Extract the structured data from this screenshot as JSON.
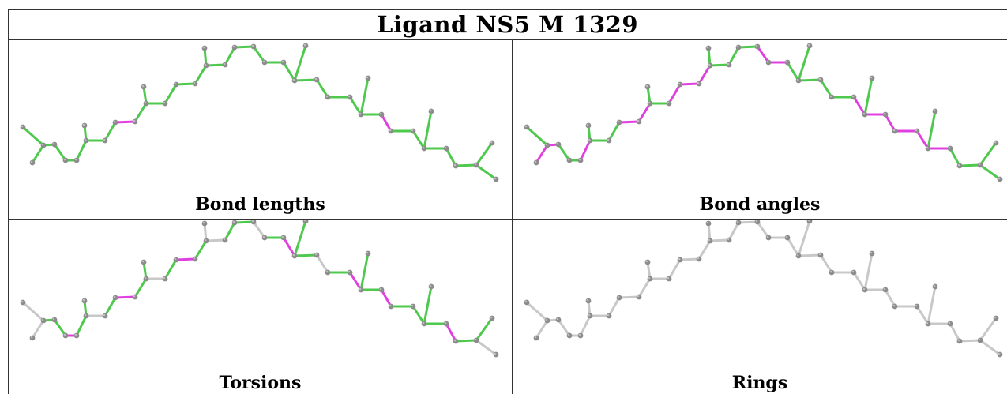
{
  "title": "Ligand NS5 M 1329",
  "colors": {
    "atom": "#8c8c8c",
    "atom_highlight": "#bdbdbd",
    "good": "#4ec94e",
    "outlier": "#e040e0",
    "neutral": "#c8c8c8"
  },
  "panels": [
    {
      "label": "Bond lengths"
    },
    {
      "label": "Bond angles"
    },
    {
      "label": "Torsions"
    },
    {
      "label": "Rings"
    }
  ]
}
